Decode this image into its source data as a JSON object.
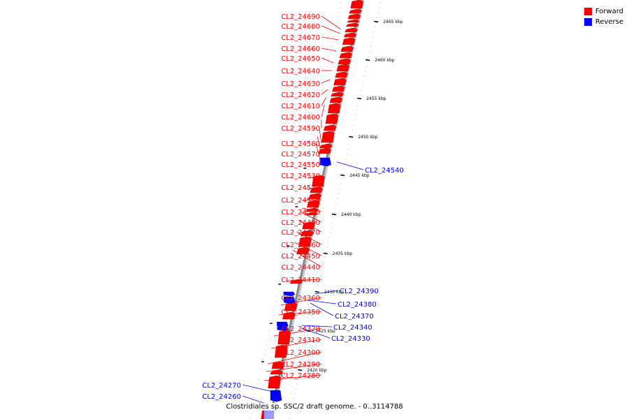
{
  "title": "Clostridiales sp. SSC/2 draft genome. - 0..3114788",
  "legend": [
    {
      "label": "Forward",
      "color": "#ff0000"
    },
    {
      "label": "Reverse",
      "color": "#0000ff"
    }
  ],
  "colors": {
    "forward": "#ff0000",
    "reverse": "#0000ff",
    "backbone": "#888888",
    "tick": "#000000"
  },
  "kbp_ticks": [
    "2465 kbp",
    "2460 kbp",
    "2455 kbp",
    "2450 kbp",
    "2445 kbp",
    "2440 kbp",
    "2435 kbp",
    "2430 kbp",
    "2425 kbp",
    "2420 kbp"
  ],
  "genes_forward": [
    "CL2_24690",
    "CL2_24680",
    "CL2_24670",
    "CL2_24660",
    "CL2_24650",
    "CL2_24640",
    "CL2_24630",
    "CL2_24620",
    "CL2_24610",
    "CL2_24600",
    "CL2_24590",
    "CL2_24580",
    "CL2_24570",
    "CL2_24550",
    "CL2_24530",
    "CL2_24520",
    "CL2_24510",
    "CL2_24500",
    "CL2_24490",
    "CL2_24470",
    "CL2_24460",
    "CL2_24450",
    "CL2_24440",
    "CL2_24410",
    "CL2_24360",
    "CL2_24350",
    "CL2_24320",
    "CL2_24310",
    "CL2_24300",
    "CL2_24290",
    "CL2_24280"
  ],
  "genes_reverse_right": [
    "CL2_24540",
    "CL2_24390",
    "CL2_24380",
    "CL2_24370",
    "CL2_24340",
    "CL2_24330"
  ],
  "genes_reverse_left": [
    "CL2_24270",
    "CL2_24260"
  ]
}
